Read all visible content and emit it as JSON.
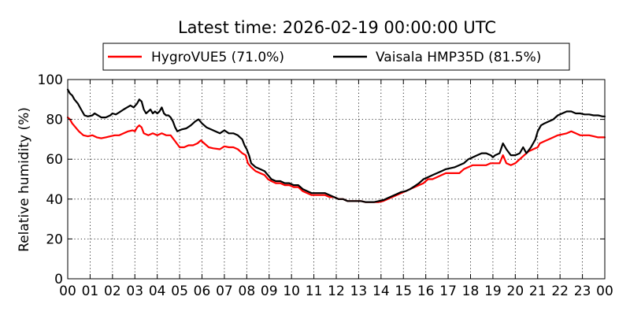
{
  "chart_data": {
    "type": "line",
    "title": "Latest time: 2026-02-19 00:00:00 UTC",
    "xlabel": "",
    "ylabel": "Relative humidity (%)",
    "xlim": [
      0,
      24
    ],
    "ylim": [
      0,
      100
    ],
    "grid": true,
    "legend_position": "top",
    "x_ticks": [
      "00",
      "01",
      "02",
      "03",
      "04",
      "05",
      "06",
      "07",
      "08",
      "09",
      "10",
      "11",
      "12",
      "13",
      "14",
      "15",
      "16",
      "17",
      "18",
      "19",
      "20",
      "21",
      "22",
      "23",
      "00"
    ],
    "y_ticks": [
      0,
      20,
      40,
      60,
      80,
      100
    ],
    "series": [
      {
        "name": "HygroVUE5 (71.0%)",
        "color": "#ff0000",
        "points": [
          [
            0.0,
            81
          ],
          [
            0.1,
            80
          ],
          [
            0.2,
            78
          ],
          [
            0.35,
            76
          ],
          [
            0.5,
            74
          ],
          [
            0.7,
            72
          ],
          [
            0.9,
            71.5
          ],
          [
            1.1,
            72
          ],
          [
            1.3,
            71
          ],
          [
            1.5,
            70.5
          ],
          [
            1.7,
            71
          ],
          [
            1.9,
            71.5
          ],
          [
            2.1,
            72
          ],
          [
            2.3,
            72
          ],
          [
            2.5,
            73
          ],
          [
            2.7,
            74
          ],
          [
            2.9,
            74.5
          ],
          [
            3.0,
            74
          ],
          [
            3.1,
            76
          ],
          [
            3.2,
            77
          ],
          [
            3.3,
            76
          ],
          [
            3.4,
            73
          ],
          [
            3.6,
            72
          ],
          [
            3.8,
            73
          ],
          [
            4.0,
            72
          ],
          [
            4.2,
            73
          ],
          [
            4.4,
            72
          ],
          [
            4.6,
            72
          ],
          [
            4.8,
            69
          ],
          [
            5.0,
            66
          ],
          [
            5.2,
            66
          ],
          [
            5.4,
            67
          ],
          [
            5.6,
            67
          ],
          [
            5.8,
            68
          ],
          [
            5.95,
            69.5
          ],
          [
            6.1,
            68
          ],
          [
            6.3,
            66
          ],
          [
            6.5,
            65.5
          ],
          [
            6.8,
            65
          ],
          [
            7.0,
            66.5
          ],
          [
            7.2,
            66
          ],
          [
            7.4,
            66
          ],
          [
            7.6,
            65
          ],
          [
            7.8,
            63
          ],
          [
            7.95,
            62
          ],
          [
            8.05,
            58
          ],
          [
            8.2,
            56
          ],
          [
            8.4,
            54
          ],
          [
            8.6,
            53
          ],
          [
            8.8,
            52
          ],
          [
            8.95,
            50
          ],
          [
            9.1,
            49
          ],
          [
            9.3,
            48
          ],
          [
            9.5,
            48
          ],
          [
            9.7,
            47
          ],
          [
            9.9,
            47
          ],
          [
            10.1,
            46
          ],
          [
            10.3,
            46
          ],
          [
            10.5,
            44
          ],
          [
            10.7,
            43
          ],
          [
            10.9,
            42
          ],
          [
            11.1,
            42
          ],
          [
            11.3,
            42
          ],
          [
            11.5,
            42
          ],
          [
            11.7,
            41
          ],
          [
            11.9,
            41
          ],
          [
            12.1,
            40
          ],
          [
            12.3,
            40
          ],
          [
            12.5,
            39
          ],
          [
            12.7,
            39
          ],
          [
            12.9,
            39
          ],
          [
            13.1,
            39
          ],
          [
            13.3,
            38.5
          ],
          [
            13.5,
            38.5
          ],
          [
            13.7,
            38.5
          ],
          [
            13.9,
            38.5
          ],
          [
            14.1,
            39
          ],
          [
            14.3,
            40
          ],
          [
            14.5,
            41
          ],
          [
            14.7,
            42
          ],
          [
            14.9,
            43
          ],
          [
            15.1,
            44
          ],
          [
            15.3,
            45
          ],
          [
            15.5,
            46
          ],
          [
            15.7,
            47
          ],
          [
            15.9,
            48
          ],
          [
            16.1,
            50
          ],
          [
            16.3,
            50
          ],
          [
            16.5,
            51
          ],
          [
            16.7,
            52
          ],
          [
            16.9,
            53
          ],
          [
            17.1,
            53
          ],
          [
            17.3,
            53
          ],
          [
            17.5,
            53
          ],
          [
            17.7,
            55
          ],
          [
            17.9,
            56
          ],
          [
            18.1,
            57
          ],
          [
            18.3,
            57
          ],
          [
            18.5,
            57
          ],
          [
            18.7,
            57
          ],
          [
            18.9,
            58
          ],
          [
            19.1,
            58
          ],
          [
            19.3,
            58
          ],
          [
            19.45,
            62
          ],
          [
            19.6,
            58
          ],
          [
            19.8,
            57
          ],
          [
            20.0,
            58
          ],
          [
            20.2,
            60
          ],
          [
            20.4,
            62
          ],
          [
            20.6,
            64
          ],
          [
            20.8,
            65
          ],
          [
            21.0,
            66
          ],
          [
            21.1,
            68
          ],
          [
            21.3,
            69
          ],
          [
            21.5,
            70
          ],
          [
            21.7,
            71
          ],
          [
            21.9,
            72
          ],
          [
            22.1,
            72.5
          ],
          [
            22.3,
            73
          ],
          [
            22.5,
            74
          ],
          [
            22.7,
            73
          ],
          [
            22.9,
            72
          ],
          [
            23.1,
            72
          ],
          [
            23.3,
            72
          ],
          [
            23.5,
            71.5
          ],
          [
            23.7,
            71
          ],
          [
            23.9,
            71
          ],
          [
            24.0,
            71
          ]
        ]
      },
      {
        "name": "Vaisala HMP35D (81.5%)",
        "color": "#000000",
        "points": [
          [
            0.0,
            95
          ],
          [
            0.1,
            93
          ],
          [
            0.2,
            92
          ],
          [
            0.3,
            90
          ],
          [
            0.45,
            88
          ],
          [
            0.6,
            85
          ],
          [
            0.75,
            82
          ],
          [
            0.9,
            81.5
          ],
          [
            1.1,
            82
          ],
          [
            1.2,
            83
          ],
          [
            1.35,
            82
          ],
          [
            1.5,
            81
          ],
          [
            1.7,
            81
          ],
          [
            1.9,
            82
          ],
          [
            2.0,
            83
          ],
          [
            2.15,
            82.5
          ],
          [
            2.3,
            83.5
          ],
          [
            2.5,
            85
          ],
          [
            2.65,
            86
          ],
          [
            2.8,
            87
          ],
          [
            2.95,
            86
          ],
          [
            3.1,
            88
          ],
          [
            3.2,
            90
          ],
          [
            3.3,
            89
          ],
          [
            3.4,
            85
          ],
          [
            3.5,
            83
          ],
          [
            3.6,
            84
          ],
          [
            3.7,
            85
          ],
          [
            3.8,
            83
          ],
          [
            3.9,
            84
          ],
          [
            4.0,
            83
          ],
          [
            4.1,
            84
          ],
          [
            4.2,
            86
          ],
          [
            4.3,
            83
          ],
          [
            4.4,
            82
          ],
          [
            4.5,
            82
          ],
          [
            4.6,
            81
          ],
          [
            4.7,
            79
          ],
          [
            4.8,
            76
          ],
          [
            4.9,
            74
          ],
          [
            5.1,
            75
          ],
          [
            5.3,
            75.5
          ],
          [
            5.5,
            77
          ],
          [
            5.7,
            79
          ],
          [
            5.85,
            80
          ],
          [
            6.0,
            78
          ],
          [
            6.2,
            76
          ],
          [
            6.4,
            75
          ],
          [
            6.6,
            74
          ],
          [
            6.8,
            73
          ],
          [
            7.0,
            74.5
          ],
          [
            7.2,
            73
          ],
          [
            7.4,
            73
          ],
          [
            7.6,
            72
          ],
          [
            7.8,
            70
          ],
          [
            7.9,
            67
          ],
          [
            8.0,
            65
          ],
          [
            8.1,
            62
          ],
          [
            8.2,
            58
          ],
          [
            8.4,
            56
          ],
          [
            8.6,
            55
          ],
          [
            8.8,
            54
          ],
          [
            8.95,
            52
          ],
          [
            9.1,
            50
          ],
          [
            9.3,
            49
          ],
          [
            9.5,
            49
          ],
          [
            9.7,
            48
          ],
          [
            9.9,
            48
          ],
          [
            10.1,
            47
          ],
          [
            10.3,
            47
          ],
          [
            10.5,
            45
          ],
          [
            10.7,
            44
          ],
          [
            10.9,
            43
          ],
          [
            11.1,
            43
          ],
          [
            11.3,
            43
          ],
          [
            11.5,
            43
          ],
          [
            11.7,
            42
          ],
          [
            11.9,
            41
          ],
          [
            12.1,
            40
          ],
          [
            12.3,
            40
          ],
          [
            12.5,
            39
          ],
          [
            12.7,
            39
          ],
          [
            12.9,
            39
          ],
          [
            13.1,
            39
          ],
          [
            13.3,
            38.5
          ],
          [
            13.5,
            38.5
          ],
          [
            13.7,
            38.5
          ],
          [
            13.9,
            39
          ],
          [
            14.1,
            39.5
          ],
          [
            14.3,
            40.5
          ],
          [
            14.5,
            41.5
          ],
          [
            14.7,
            42.5
          ],
          [
            14.9,
            43.5
          ],
          [
            15.1,
            44
          ],
          [
            15.3,
            45
          ],
          [
            15.5,
            46.5
          ],
          [
            15.7,
            48
          ],
          [
            15.9,
            50
          ],
          [
            16.1,
            51
          ],
          [
            16.3,
            52
          ],
          [
            16.5,
            53
          ],
          [
            16.7,
            54
          ],
          [
            16.9,
            55
          ],
          [
            17.1,
            55.5
          ],
          [
            17.3,
            56
          ],
          [
            17.5,
            57
          ],
          [
            17.7,
            58
          ],
          [
            17.9,
            60
          ],
          [
            18.1,
            61
          ],
          [
            18.3,
            62
          ],
          [
            18.5,
            63
          ],
          [
            18.7,
            63
          ],
          [
            18.9,
            62
          ],
          [
            19.0,
            61
          ],
          [
            19.1,
            62
          ],
          [
            19.3,
            63
          ],
          [
            19.45,
            68
          ],
          [
            19.6,
            65
          ],
          [
            19.8,
            62
          ],
          [
            20.0,
            62
          ],
          [
            20.2,
            63
          ],
          [
            20.35,
            66
          ],
          [
            20.5,
            63
          ],
          [
            20.7,
            66
          ],
          [
            20.9,
            70
          ],
          [
            21.0,
            74
          ],
          [
            21.15,
            77
          ],
          [
            21.3,
            78
          ],
          [
            21.5,
            79
          ],
          [
            21.7,
            80
          ],
          [
            21.9,
            82
          ],
          [
            22.1,
            83
          ],
          [
            22.3,
            84
          ],
          [
            22.5,
            84
          ],
          [
            22.7,
            83
          ],
          [
            22.9,
            83
          ],
          [
            23.1,
            82.5
          ],
          [
            23.3,
            82.5
          ],
          [
            23.5,
            82
          ],
          [
            23.7,
            82
          ],
          [
            23.9,
            81.5
          ],
          [
            24.0,
            81.5
          ]
        ]
      }
    ]
  }
}
